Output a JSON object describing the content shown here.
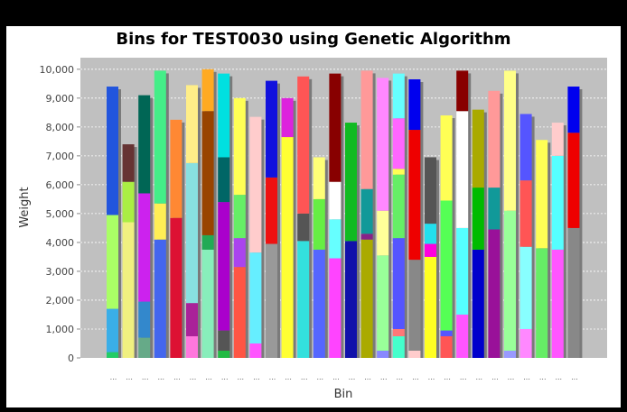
{
  "chart_data": {
    "type": "bar",
    "stacked": true,
    "title": "Bins for TEST0030 using Genetic Algorithm",
    "xlabel": "Bin",
    "ylabel": "Weight",
    "ylim": [
      0,
      10400
    ],
    "yticks": [
      "0",
      "1,000",
      "2,000",
      "3,000",
      "4,000",
      "5,000",
      "6,000",
      "7,000",
      "8,000",
      "9,000",
      "10,000"
    ],
    "ytick_values": [
      0,
      1000,
      2000,
      3000,
      4000,
      5000,
      6000,
      7000,
      8000,
      9000,
      10000
    ],
    "grid": true,
    "plot_background": "#c0c0c0",
    "category_label": "...",
    "bins": [
      {
        "segments": [
          {
            "v": 200,
            "c": "#22cc66"
          },
          {
            "v": 1500,
            "c": "#3aaee8"
          },
          {
            "v": 3250,
            "c": "#aaff66"
          },
          {
            "v": 4450,
            "c": "#2255dd"
          }
        ]
      },
      {
        "segments": [
          {
            "v": 4700,
            "c": "#f0f080"
          },
          {
            "v": 1400,
            "c": "#aaee44"
          },
          {
            "v": 1300,
            "c": "#663333"
          }
        ]
      },
      {
        "segments": [
          {
            "v": 700,
            "c": "#66aa88"
          },
          {
            "v": 1250,
            "c": "#3388cc"
          },
          {
            "v": 3750,
            "c": "#cc22ee"
          },
          {
            "v": 3400,
            "c": "#006655"
          }
        ]
      },
      {
        "segments": [
          {
            "v": 4100,
            "c": "#4466ee"
          },
          {
            "v": 1250,
            "c": "#ffee55"
          },
          {
            "v": 4600,
            "c": "#44ee88"
          }
        ]
      },
      {
        "segments": [
          {
            "v": 4850,
            "c": "#dd1133"
          },
          {
            "v": 3400,
            "c": "#ff8833"
          }
        ]
      },
      {
        "segments": [
          {
            "v": 750,
            "c": "#ff77dd"
          },
          {
            "v": 1150,
            "c": "#aa2299"
          },
          {
            "v": 4850,
            "c": "#88e0e0"
          },
          {
            "v": 2700,
            "c": "#ffee88"
          }
        ]
      },
      {
        "segments": [
          {
            "v": 3750,
            "c": "#88eebb"
          },
          {
            "v": 500,
            "c": "#22aa55"
          },
          {
            "v": 4300,
            "c": "#994400"
          },
          {
            "v": 1450,
            "c": "#ffaa22"
          }
        ]
      },
      {
        "segments": [
          {
            "v": 250,
            "c": "#22bb44"
          },
          {
            "v": 700,
            "c": "#555555"
          },
          {
            "v": 4450,
            "c": "#aa00cc"
          },
          {
            "v": 1550,
            "c": "#006666"
          },
          {
            "v": 2900,
            "c": "#00e0e0"
          }
        ]
      },
      {
        "segments": [
          {
            "v": 3150,
            "c": "#ff5544"
          },
          {
            "v": 1000,
            "c": "#aa44ee"
          },
          {
            "v": 1500,
            "c": "#66ee66"
          },
          {
            "v": 3350,
            "c": "#ffff55"
          }
        ]
      },
      {
        "segments": [
          {
            "v": 500,
            "c": "#ff55ff"
          },
          {
            "v": 3150,
            "c": "#66eeff"
          },
          {
            "v": 4700,
            "c": "#ffcccc"
          }
        ]
      },
      {
        "segments": [
          {
            "v": 3950,
            "c": "#999999"
          },
          {
            "v": 2300,
            "c": "#ee1111"
          },
          {
            "v": 3350,
            "c": "#1111dd"
          }
        ]
      },
      {
        "segments": [
          {
            "v": 7650,
            "c": "#ffff33"
          },
          {
            "v": 1350,
            "c": "#dd22dd"
          }
        ]
      },
      {
        "segments": [
          {
            "v": 4050,
            "c": "#33e0dd"
          },
          {
            "v": 950,
            "c": "#555555"
          },
          {
            "v": 4750,
            "c": "#ff5555"
          }
        ]
      },
      {
        "segments": [
          {
            "v": 3750,
            "c": "#5566ff"
          },
          {
            "v": 1750,
            "c": "#66ee44"
          },
          {
            "v": 1450,
            "c": "#ffff77"
          }
        ]
      },
      {
        "segments": [
          {
            "v": 3450,
            "c": "#ff44ff"
          },
          {
            "v": 1350,
            "c": "#66ffff"
          },
          {
            "v": 1300,
            "c": "#ffffff"
          },
          {
            "v": 3750,
            "c": "#880000"
          }
        ]
      },
      {
        "segments": [
          {
            "v": 4050,
            "c": "#1111aa"
          },
          {
            "v": 4100,
            "c": "#11bb22"
          }
        ]
      },
      {
        "segments": [
          {
            "v": 4100,
            "c": "#aaaa00"
          },
          {
            "v": 200,
            "c": "#882288"
          },
          {
            "v": 1550,
            "c": "#119999"
          },
          {
            "v": 4100,
            "c": "#ff9999"
          }
        ]
      },
      {
        "segments": [
          {
            "v": 250,
            "c": "#8888ff"
          },
          {
            "v": 3300,
            "c": "#99ff99"
          },
          {
            "v": 1550,
            "c": "#ffff99"
          },
          {
            "v": 4600,
            "c": "#ff88ff"
          }
        ]
      },
      {
        "segments": [
          {
            "v": 750,
            "c": "#44ffcc"
          },
          {
            "v": 250,
            "c": "#ff7777"
          },
          {
            "v": 3150,
            "c": "#5555ff"
          },
          {
            "v": 2200,
            "c": "#66ee66"
          },
          {
            "v": 200,
            "c": "#ffff55"
          },
          {
            "v": 1750,
            "c": "#ff66ff"
          },
          {
            "v": 1550,
            "c": "#66ffff"
          }
        ]
      },
      {
        "segments": [
          {
            "v": 250,
            "c": "#ffcccc"
          },
          {
            "v": 3150,
            "c": "#888888"
          },
          {
            "v": 4500,
            "c": "#ee0000"
          },
          {
            "v": 1750,
            "c": "#0000ee"
          }
        ]
      },
      {
        "segments": [
          {
            "v": 3500,
            "c": "#ffff22"
          },
          {
            "v": 450,
            "c": "#ff00dd"
          },
          {
            "v": 700,
            "c": "#22e0ee"
          },
          {
            "v": 2300,
            "c": "#555555"
          }
        ]
      },
      {
        "segments": [
          {
            "v": 750,
            "c": "#ff5555"
          },
          {
            "v": 200,
            "c": "#5555ff"
          },
          {
            "v": 4500,
            "c": "#55ff55"
          },
          {
            "v": 2950,
            "c": "#ffff55"
          }
        ]
      },
      {
        "segments": [
          {
            "v": 1500,
            "c": "#ff55ff"
          },
          {
            "v": 3000,
            "c": "#55ffff"
          },
          {
            "v": 4050,
            "c": "#ffffff"
          },
          {
            "v": 1400,
            "c": "#880000"
          }
        ]
      },
      {
        "segments": [
          {
            "v": 3750,
            "c": "#0000cc"
          },
          {
            "v": 2150,
            "c": "#00bb00"
          },
          {
            "v": 2700,
            "c": "#aaaa00"
          }
        ]
      },
      {
        "segments": [
          {
            "v": 4450,
            "c": "#991199"
          },
          {
            "v": 1450,
            "c": "#119999"
          },
          {
            "v": 3350,
            "c": "#ff9999"
          }
        ]
      },
      {
        "segments": [
          {
            "v": 250,
            "c": "#9999ff"
          },
          {
            "v": 4850,
            "c": "#99ff99"
          },
          {
            "v": 4850,
            "c": "#ffff88"
          }
        ]
      },
      {
        "segments": [
          {
            "v": 1000,
            "c": "#ff88ff"
          },
          {
            "v": 2850,
            "c": "#88ffff"
          },
          {
            "v": 2300,
            "c": "#ff5555"
          },
          {
            "v": 2300,
            "c": "#5555ff"
          }
        ]
      },
      {
        "segments": [
          {
            "v": 3800,
            "c": "#66ee66"
          },
          {
            "v": 3750,
            "c": "#ffff55"
          }
        ]
      },
      {
        "segments": [
          {
            "v": 3750,
            "c": "#ff55ff"
          },
          {
            "v": 3250,
            "c": "#55ffff"
          },
          {
            "v": 1150,
            "c": "#ffcccc"
          }
        ]
      },
      {
        "segments": [
          {
            "v": 4500,
            "c": "#888888"
          },
          {
            "v": 3300,
            "c": "#ee0000"
          },
          {
            "v": 1600,
            "c": "#0000ee"
          }
        ]
      }
    ]
  }
}
